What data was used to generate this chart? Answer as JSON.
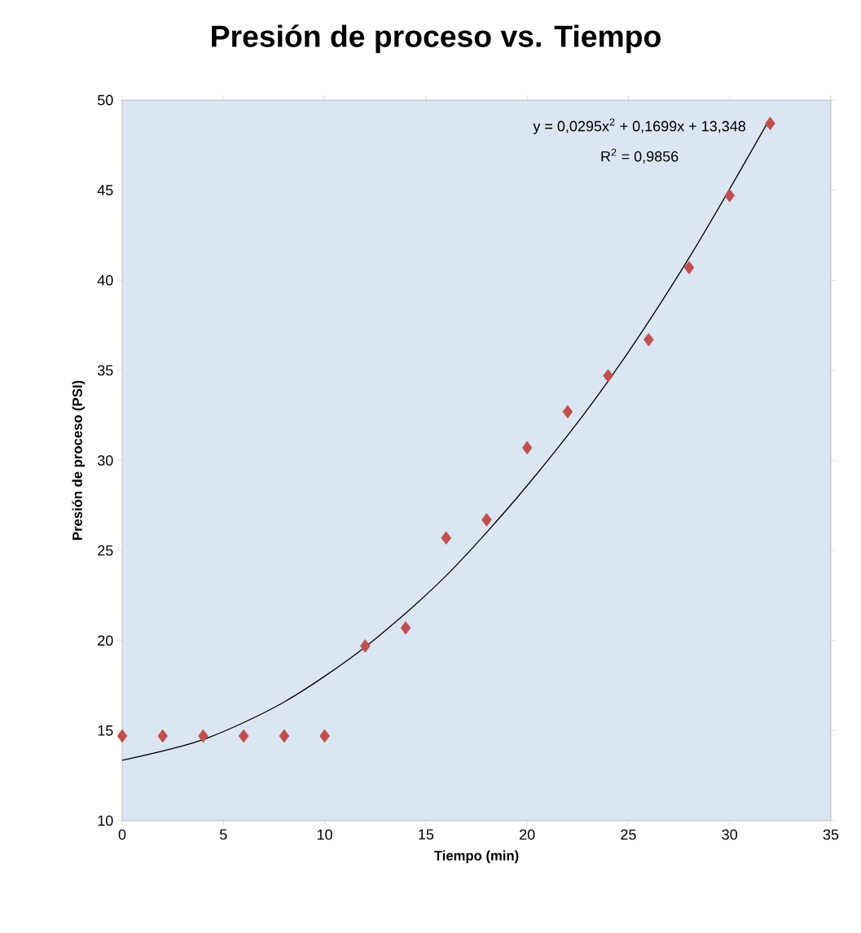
{
  "chart_data": {
    "type": "scatter",
    "title": "Presión de proceso vs. Tiempo",
    "xlabel": "Tiempo (min)",
    "ylabel": "Presión de proceso (PSI)",
    "xlim": [
      0,
      35
    ],
    "ylim": [
      10,
      50
    ],
    "xticks": [
      0,
      5,
      10,
      15,
      20,
      25,
      30,
      35
    ],
    "yticks": [
      10,
      15,
      20,
      25,
      30,
      35,
      40,
      45,
      50
    ],
    "grid": false,
    "marker": "diamond",
    "series": [
      {
        "color": "#c0504d",
        "x": [
          0,
          2,
          4,
          6,
          8,
          10,
          12,
          14,
          16,
          18,
          20,
          22,
          24,
          26,
          28,
          30,
          32
        ],
        "values": [
          14.7,
          14.7,
          14.7,
          14.7,
          14.7,
          14.7,
          19.7,
          20.7,
          25.7,
          26.7,
          30.7,
          32.7,
          34.7,
          36.7,
          40.7,
          44.7,
          48.7
        ]
      },
      {
        "type": "line",
        "color": "#000000",
        "marker": "none",
        "x": [
          0,
          4,
          8,
          12,
          16,
          20,
          24,
          28,
          32
        ],
        "values": [
          13.35,
          14.5,
          16.59,
          19.64,
          23.6,
          28.6,
          34.4,
          41.25,
          49.0
        ]
      }
    ],
    "annotations": [
      "y = 0,0295x$^{2}$ + 0,1699x + 13,348",
      "R$^{2}$ = 0,9856"
    ]
  }
}
